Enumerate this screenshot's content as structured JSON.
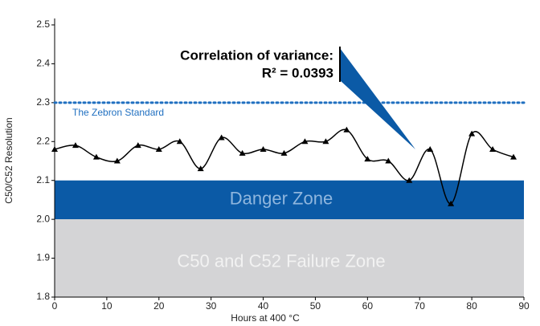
{
  "chart_data": {
    "type": "line",
    "x_label": "Hours at 400 °C",
    "y_label": "C50/C52 Resolution",
    "x": [
      0,
      4,
      8,
      12,
      16,
      20,
      24,
      28,
      32,
      36,
      40,
      44,
      48,
      52,
      56,
      60,
      64,
      68,
      72,
      76,
      80,
      84,
      88
    ],
    "series": [
      {
        "name": "C50/C52 Resolution",
        "color": "#000000",
        "values": [
          2.18,
          2.19,
          2.16,
          2.15,
          2.19,
          2.18,
          2.2,
          2.13,
          2.21,
          2.17,
          2.18,
          2.17,
          2.2,
          2.2,
          2.23,
          2.155,
          2.15,
          2.1,
          2.18,
          2.04,
          2.22,
          2.18,
          2.16
        ]
      }
    ],
    "xlim": [
      0,
      90
    ],
    "ylim": [
      1.8,
      2.5
    ],
    "xticks": [
      0,
      10,
      20,
      30,
      40,
      50,
      60,
      70,
      80,
      90
    ],
    "yticks": [
      1.8,
      1.9,
      {
        "value": 2,
        "label": "2.0"
      },
      2.1,
      2.2,
      2.3,
      2.4,
      2.5
    ],
    "zones": [
      {
        "label": "Danger Zone",
        "from": 2,
        "to": 2.1,
        "color": "#0b5aa6"
      },
      {
        "label": "C50 and C52 Failure Zone",
        "from": 1.8,
        "to": 2,
        "color": "#d4d4d6"
      }
    ],
    "reference_line": {
      "label": "The Zebron Standard",
      "value": 2.3,
      "color": "#1f6fc0"
    },
    "annotation": [
      "Correlation of variance:",
      "R² = 0.0393"
    ]
  }
}
